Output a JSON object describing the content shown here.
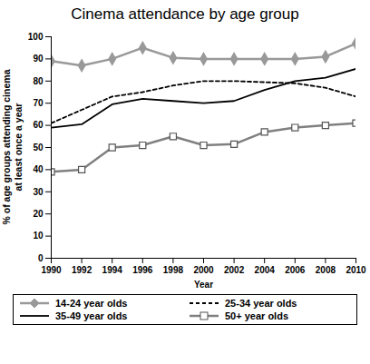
{
  "chart_data": {
    "type": "line",
    "title": "Cinema attendance by age group",
    "xlabel": "Year",
    "ylabel": "% of age groups attending cinema\nat least once a year",
    "x": [
      1990,
      1992,
      1994,
      1996,
      1998,
      2000,
      2002,
      2004,
      2006,
      2008,
      2010
    ],
    "xlim": [
      1990,
      2010
    ],
    "xticks": [
      1990,
      1992,
      1994,
      1996,
      1998,
      2000,
      2002,
      2004,
      2006,
      2008,
      2010
    ],
    "ylim": [
      0,
      100
    ],
    "yticks": [
      0,
      10,
      20,
      30,
      40,
      50,
      60,
      70,
      80,
      90,
      100
    ],
    "grid": false,
    "legend": "bottom",
    "series": [
      {
        "name": "14-24 year olds",
        "color": "#999999",
        "marker": "diamond",
        "line_style": "solid",
        "values": [
          89,
          87,
          90,
          95,
          90.5,
          90,
          90,
          90,
          90,
          91,
          97
        ]
      },
      {
        "name": "25-34 year olds",
        "color": "#000000",
        "marker": "none",
        "line_style": "dashed",
        "values": [
          61,
          67,
          73,
          75,
          78,
          80,
          80,
          79.5,
          79,
          77,
          73
        ]
      },
      {
        "name": "35-49 year olds",
        "color": "#000000",
        "marker": "none",
        "line_style": "solid",
        "values": [
          59,
          60.5,
          69.5,
          72,
          71,
          70,
          71,
          76,
          80,
          81.5,
          85.5
        ]
      },
      {
        "name": "50+ year olds",
        "color": "#808080",
        "marker": "open_square",
        "line_style": "solid",
        "values": [
          39,
          40,
          50,
          51,
          55,
          51,
          51.5,
          57,
          59,
          60,
          61
        ]
      }
    ]
  }
}
